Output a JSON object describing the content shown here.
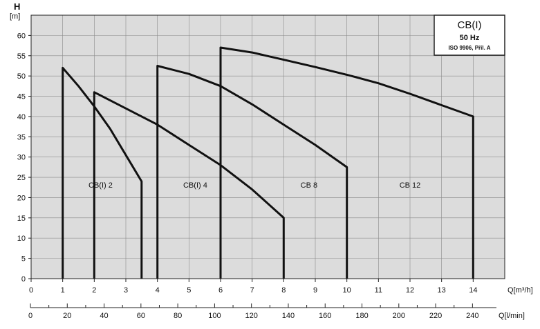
{
  "chart_data": {
    "type": "line",
    "title": "CB(I)",
    "subtitle": "50 Hz",
    "note": "ISO 9906, Příl. A",
    "ylabel_top": "H",
    "ylabel_unit": "[m]",
    "xlabel": "Q[m³/h]",
    "xlabel2": "Q[l/min]",
    "xlim": [
      0,
      15
    ],
    "ylim": [
      0,
      65
    ],
    "yticks": [
      0,
      5,
      10,
      15,
      20,
      25,
      30,
      35,
      40,
      45,
      50,
      55,
      60
    ],
    "xticks": [
      0,
      1,
      2,
      3,
      4,
      5,
      6,
      7,
      8,
      9,
      10,
      11,
      12,
      13,
      14
    ],
    "x2lim": [
      0,
      250
    ],
    "x2ticks": [
      0,
      20,
      40,
      60,
      80,
      100,
      120,
      140,
      160,
      180,
      200,
      220,
      240
    ],
    "grid": true,
    "background": "#dcdcdc",
    "line_color": "#111111",
    "series": [
      {
        "name": "CB(I) 2",
        "label_pos": {
          "x": 2.2,
          "y": 22.5
        },
        "points": [
          [
            1,
            0
          ],
          [
            1,
            52
          ],
          [
            1.5,
            47.5
          ],
          [
            2,
            42.5
          ],
          [
            2.5,
            37
          ],
          [
            3,
            30.5
          ],
          [
            3.5,
            24
          ],
          [
            3.5,
            0
          ]
        ]
      },
      {
        "name": "CB(I) 4",
        "label_pos": {
          "x": 5.2,
          "y": 22.5
        },
        "points": [
          [
            2,
            0
          ],
          [
            2,
            46
          ],
          [
            3,
            42
          ],
          [
            4,
            38
          ],
          [
            5,
            33
          ],
          [
            6,
            28
          ],
          [
            7,
            22
          ],
          [
            8,
            15
          ],
          [
            8,
            0
          ]
        ]
      },
      {
        "name": "CB 8",
        "label_pos": {
          "x": 8.8,
          "y": 22.5
        },
        "points": [
          [
            4,
            0
          ],
          [
            4,
            38
          ],
          [
            4,
            52.5
          ],
          [
            5,
            50.5
          ],
          [
            6,
            47.5
          ],
          [
            7,
            43
          ],
          [
            8,
            38
          ],
          [
            9,
            33
          ],
          [
            10,
            27.5
          ],
          [
            10,
            0
          ]
        ]
      },
      {
        "name": "CB 12",
        "label_pos": {
          "x": 12.0,
          "y": 22.5
        },
        "points": [
          [
            6,
            0
          ],
          [
            6,
            46
          ],
          [
            6,
            57
          ],
          [
            7,
            55.8
          ],
          [
            8,
            54
          ],
          [
            9,
            52.2
          ],
          [
            10,
            50.3
          ],
          [
            11,
            48.2
          ],
          [
            12,
            45.6
          ],
          [
            13,
            42.8
          ],
          [
            14,
            40
          ],
          [
            14,
            0
          ]
        ]
      }
    ]
  }
}
